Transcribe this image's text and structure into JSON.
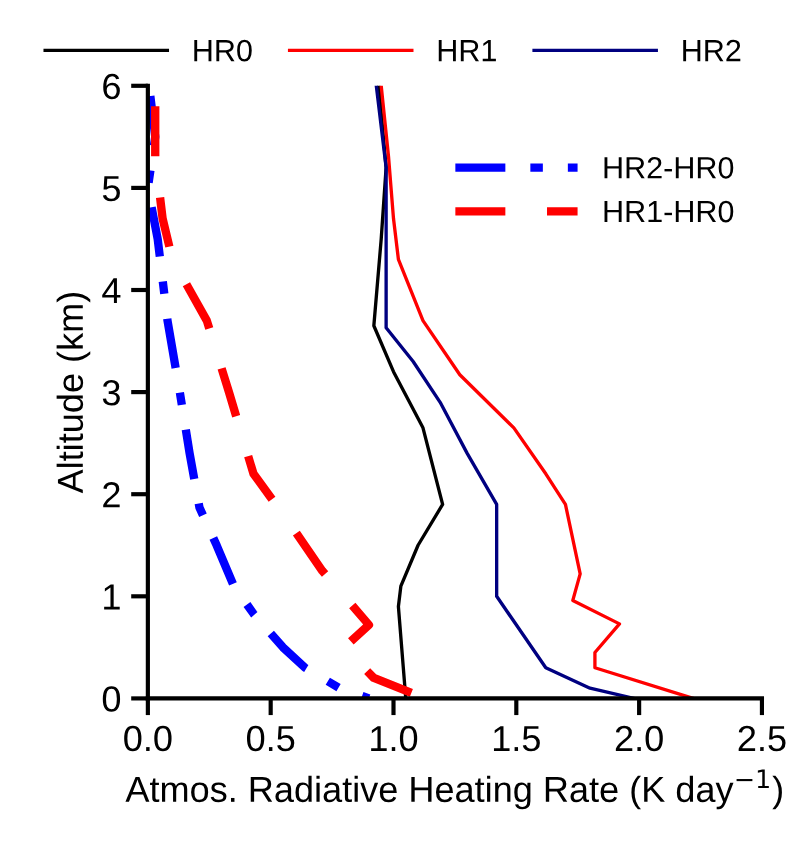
{
  "chart_data": {
    "type": "line",
    "xlabel": "Atmos. Radiative Heating Rate (K day$^{−1}$)",
    "ylabel": "Altitude (km)",
    "xlim": [
      0,
      2.5
    ],
    "ylim": [
      0,
      6
    ],
    "xticks": [
      {
        "value": 0,
        "label": "0.0"
      },
      {
        "value": 0.5,
        "label": "0.5"
      },
      {
        "value": 1,
        "label": "1.0"
      },
      {
        "value": 1.5,
        "label": "1.5"
      },
      {
        "value": 2,
        "label": "2.0"
      },
      {
        "value": 2.5,
        "label": "2.5"
      }
    ],
    "yticks": [
      0,
      1,
      2,
      3,
      4,
      5,
      6
    ],
    "legend": "top",
    "series": [
      {
        "name": "HR0",
        "color": "#000000",
        "line_style": "solid",
        "x": [
          0.94,
          0.97,
          0.95,
          0.92,
          1.0,
          1.12,
          1.2,
          1.1,
          1.03,
          1.02,
          1.04,
          1.05
        ],
        "values": [
          6,
          5.2,
          4.5,
          3.65,
          3.2,
          2.65,
          1.9,
          1.5,
          1.1,
          0.9,
          0.3,
          0
        ]
      },
      {
        "name": "HR1",
        "color": "#ff0000",
        "line_style": "solid",
        "x": [
          0.95,
          0.98,
          1.0,
          1.02,
          1.12,
          1.27,
          1.49,
          1.62,
          1.7,
          1.76,
          1.73,
          1.92,
          1.82,
          1.82,
          2.22
        ],
        "values": [
          6,
          5.3,
          4.7,
          4.3,
          3.7,
          3.17,
          2.65,
          2.2,
          1.9,
          1.22,
          0.96,
          0.73,
          0.45,
          0.3,
          0
        ]
      },
      {
        "name": "HR2",
        "color": "#000080",
        "line_style": "solid",
        "x": [
          0.93,
          0.97,
          0.97,
          0.97,
          1.08,
          1.19,
          1.3,
          1.42,
          1.42,
          1.52,
          1.62,
          1.8,
          1.98
        ],
        "values": [
          6,
          5.2,
          4.5,
          3.63,
          3.3,
          2.9,
          2.4,
          1.9,
          1.0,
          0.65,
          0.3,
          0.1,
          0
        ]
      },
      {
        "name": "HR2-HR0",
        "color": "#0000ff",
        "line_style": "dashdot",
        "x": [
          0.01,
          0.03,
          0.0,
          0.04,
          0.08,
          0.13,
          0.17,
          0.21,
          0.28,
          0.35,
          0.43,
          0.55,
          0.64,
          0.78,
          0.9
        ],
        "values": [
          5.9,
          5.5,
          5.0,
          4.5,
          3.7,
          3.0,
          2.4,
          1.87,
          1.5,
          1.1,
          0.83,
          0.5,
          0.3,
          0.1,
          0
        ]
      },
      {
        "name": "HR1-HR0",
        "color": "#ff0000",
        "line_style": "dashed",
        "x": [
          0.03,
          0.03,
          0.06,
          0.1,
          0.24,
          0.33,
          0.43,
          0.59,
          0.71,
          0.9,
          0.8,
          0.92,
          1.13
        ],
        "values": [
          5.8,
          5.3,
          4.7,
          4.3,
          3.7,
          3.0,
          2.2,
          1.67,
          1.25,
          0.72,
          0.5,
          0.2,
          0
        ]
      }
    ]
  }
}
